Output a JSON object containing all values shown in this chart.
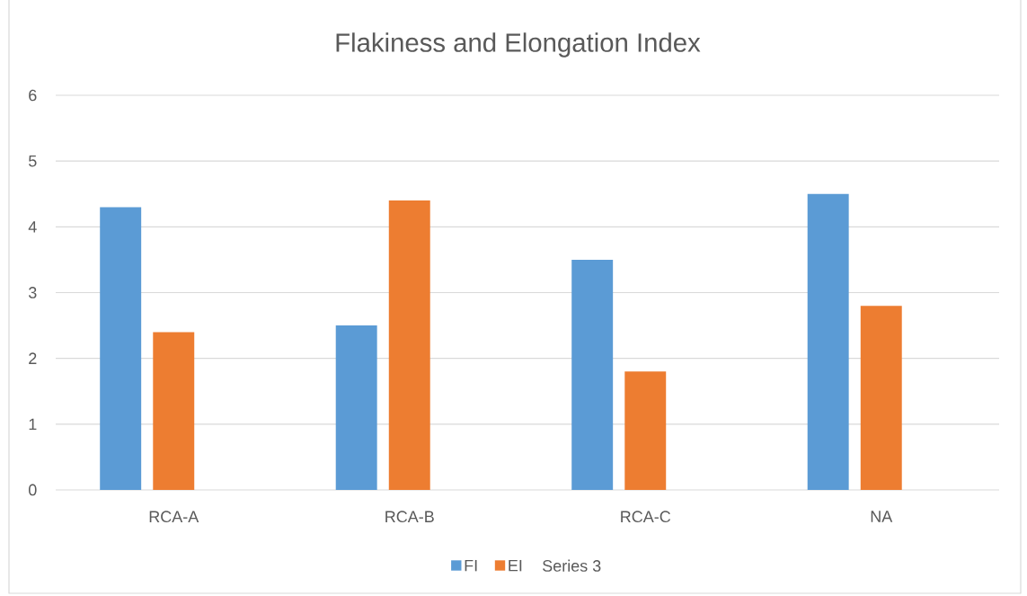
{
  "chart_data": {
    "type": "bar",
    "title": "Flakiness and Elongation Index",
    "categories": [
      "RCA-A",
      "RCA-B",
      "RCA-C",
      "NA"
    ],
    "series": [
      {
        "name": "FI",
        "color": "#5b9bd5",
        "values": [
          4.3,
          2.5,
          3.5,
          4.5
        ]
      },
      {
        "name": "EI",
        "color": "#ed7d31",
        "values": [
          2.4,
          4.4,
          1.8,
          2.8
        ]
      },
      {
        "name": "Series 3",
        "values": [
          null,
          null,
          null,
          null
        ]
      }
    ],
    "ylim": [
      0,
      6
    ],
    "yticks": [
      0,
      1,
      2,
      3,
      4,
      5,
      6
    ],
    "grid": "y",
    "legend": "bottom"
  }
}
